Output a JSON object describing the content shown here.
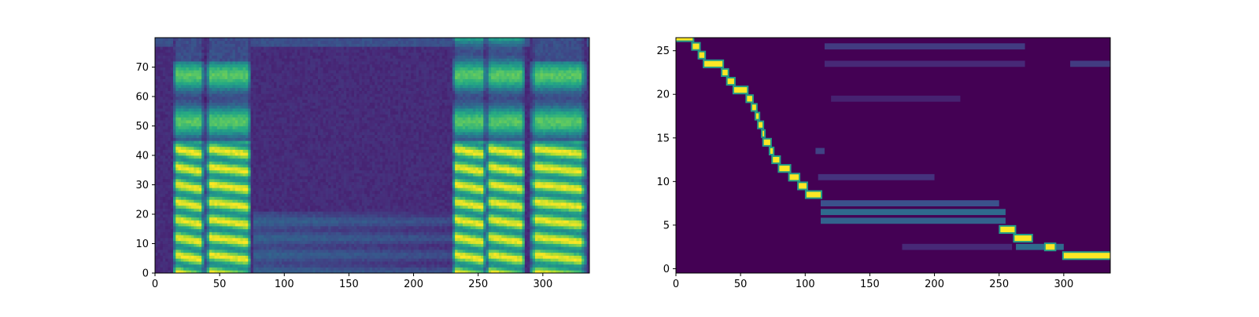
{
  "chart_data": [
    {
      "type": "heatmap",
      "title": "",
      "xlabel": "",
      "ylabel": "",
      "colormap": "viridis",
      "xlim": [
        0,
        336
      ],
      "ylim": [
        0,
        80
      ],
      "x_ticks": [
        0,
        50,
        100,
        150,
        200,
        250,
        300
      ],
      "y_ticks": [
        0,
        10,
        20,
        30,
        40,
        50,
        60,
        70
      ],
      "speech_segments": [
        {
          "x": [
            14,
            38
          ],
          "peak_bin": 72
        },
        {
          "x": [
            39,
            75
          ],
          "peak_bin": 72
        },
        {
          "x": [
            230,
            256
          ],
          "peak_bin": 80
        },
        {
          "x": [
            256,
            287
          ],
          "peak_bin": 80
        },
        {
          "x": [
            290,
            334
          ],
          "peak_bin": 72
        }
      ],
      "silence_segments": [
        [
          0,
          14
        ],
        [
          75,
          230
        ],
        [
          287,
          290
        ]
      ]
    },
    {
      "type": "heatmap",
      "title": "",
      "xlabel": "",
      "ylabel": "",
      "colormap": "viridis",
      "xlim": [
        0,
        336
      ],
      "ylim": [
        -0.5,
        26.5
      ],
      "x_ticks": [
        0,
        50,
        100,
        150,
        200,
        250,
        300
      ],
      "y_ticks": [
        0,
        5,
        10,
        15,
        20,
        25
      ],
      "alignment_path": [
        {
          "row": 26,
          "x": [
            0,
            13
          ]
        },
        {
          "row": 25,
          "x": [
            13,
            18
          ]
        },
        {
          "row": 24,
          "x": [
            18,
            22
          ]
        },
        {
          "row": 23,
          "x": [
            22,
            36
          ]
        },
        {
          "row": 22,
          "x": [
            36,
            40
          ]
        },
        {
          "row": 21,
          "x": [
            40,
            45
          ]
        },
        {
          "row": 20,
          "x": [
            45,
            55
          ]
        },
        {
          "row": 19,
          "x": [
            55,
            59
          ]
        },
        {
          "row": 18,
          "x": [
            59,
            62
          ]
        },
        {
          "row": 17,
          "x": [
            62,
            64
          ]
        },
        {
          "row": 16,
          "x": [
            64,
            67
          ]
        },
        {
          "row": 15,
          "x": [
            67,
            68
          ]
        },
        {
          "row": 14,
          "x": [
            68,
            73
          ]
        },
        {
          "row": 13,
          "x": [
            73,
            75
          ]
        },
        {
          "row": 12,
          "x": [
            75,
            80
          ]
        },
        {
          "row": 11,
          "x": [
            80,
            88
          ]
        },
        {
          "row": 10,
          "x": [
            88,
            95
          ]
        },
        {
          "row": 9,
          "x": [
            95,
            101
          ]
        },
        {
          "row": 8,
          "x": [
            101,
            112
          ]
        },
        {
          "row": 4,
          "x": [
            251,
            262
          ]
        },
        {
          "row": 3,
          "x": [
            262,
            275
          ]
        },
        {
          "row": 2,
          "x": [
            286,
            293
          ]
        },
        {
          "row": 1,
          "x": [
            300,
            336
          ]
        }
      ],
      "weak_bands": [
        {
          "row": 25,
          "x": [
            115,
            270
          ],
          "level": 0.18
        },
        {
          "row": 23,
          "x": [
            115,
            270
          ],
          "level": 0.12
        },
        {
          "row": 23,
          "x": [
            305,
            336
          ],
          "level": 0.18
        },
        {
          "row": 19,
          "x": [
            120,
            220
          ],
          "level": 0.1
        },
        {
          "row": 13,
          "x": [
            108,
            115
          ],
          "level": 0.2
        },
        {
          "row": 10,
          "x": [
            110,
            200
          ],
          "level": 0.15
        },
        {
          "row": 7,
          "x": [
            112,
            250
          ],
          "level": 0.25
        },
        {
          "row": 6,
          "x": [
            112,
            255
          ],
          "level": 0.35
        },
        {
          "row": 5,
          "x": [
            112,
            255
          ],
          "level": 0.32
        },
        {
          "row": 2,
          "x": [
            175,
            260
          ],
          "level": 0.12
        },
        {
          "row": 2,
          "x": [
            263,
            300
          ],
          "level": 0.35
        }
      ]
    }
  ]
}
